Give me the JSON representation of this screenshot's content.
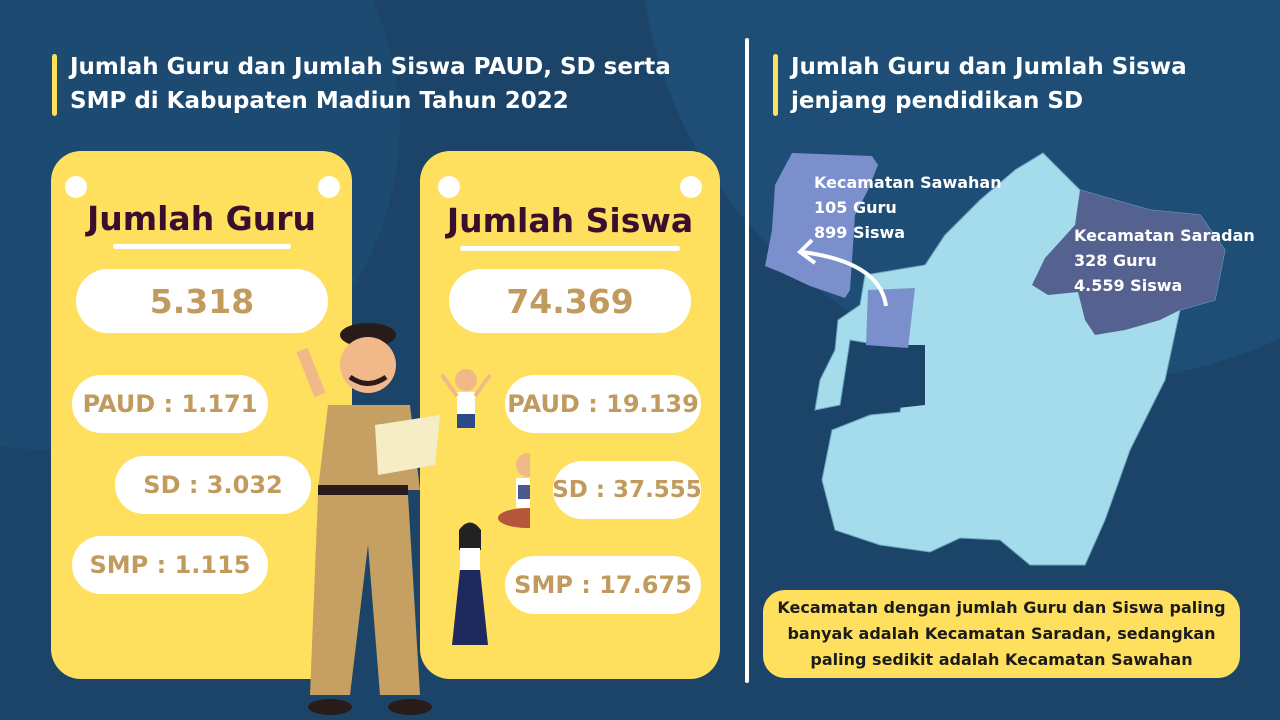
{
  "left": {
    "title": "Jumlah Guru dan Jumlah Siswa PAUD, SD serta SMP di Kabupaten Madiun Tahun 2022",
    "guru": {
      "title": "Jumlah Guru",
      "total": "5.318",
      "paud": "PAUD : 1.171",
      "sd": "SD : 3.032",
      "smp": "SMP : 1.115"
    },
    "siswa": {
      "title": "Jumlah Siswa",
      "total": "74.369",
      "paud": "PAUD : 19.139",
      "sd": "SD : 37.555",
      "smp": "SMP : 17.675"
    }
  },
  "right": {
    "title": "Jumlah Guru dan Jumlah Siswa jenjang pendidikan SD",
    "sawahan": {
      "name": "Kecamatan Sawahan",
      "guru": "105 Guru",
      "siswa": "899 Siswa"
    },
    "saradan": {
      "name": "Kecamatan Saradan",
      "guru": "328 Guru",
      "siswa": "4.559 Siswa"
    },
    "note": "Kecamatan dengan jumlah Guru dan Siswa paling banyak adalah Kecamatan Saradan, sedangkan paling sedikit adalah Kecamatan Sawahan"
  },
  "colors": {
    "background": "#1b4468",
    "accent": "#ffdf5e",
    "map": "#a4dcec",
    "sawahan": "#7a8fcb",
    "saradan": "#55628f",
    "value_text": "#c19a5e"
  }
}
